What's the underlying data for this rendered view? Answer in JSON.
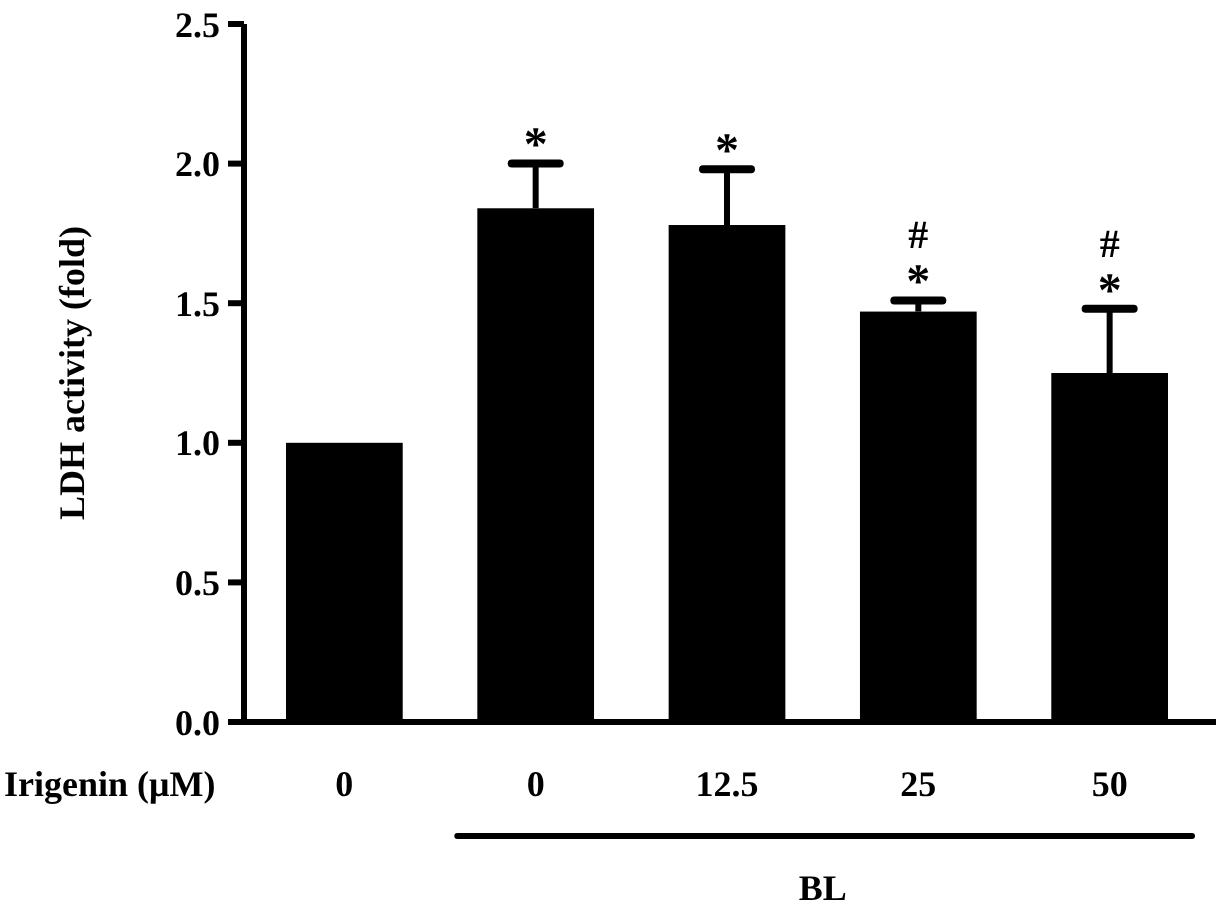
{
  "chart_data": {
    "type": "bar",
    "xlabel": "Irigenin (μM)",
    "ylabel": "LDH activity (fold)",
    "categories": [
      "0",
      "0",
      "12.5",
      "25",
      "50"
    ],
    "values": [
      1.0,
      1.84,
      1.78,
      1.47,
      1.25
    ],
    "errors": [
      null,
      [
        1.84,
        2.0
      ],
      [
        1.78,
        1.98
      ],
      [
        1.47,
        1.51
      ],
      [
        1.25,
        1.48
      ]
    ],
    "color": "#000000",
    "ylim": [
      0,
      2.5
    ],
    "yticks": [
      {
        "value": 0,
        "label": "0.0"
      },
      {
        "value": 0.5,
        "label": "0.5"
      },
      {
        "value": 1,
        "label": "1.0"
      },
      {
        "value": 1.5,
        "label": "1.5"
      },
      {
        "value": 2,
        "label": "2.0"
      },
      {
        "value": 2.5,
        "label": "2.5"
      }
    ],
    "grid": false,
    "annotations": [
      "*",
      {
        "text": "*",
        "x": "12.5",
        "y": 1.98
      },
      {
        "text": "*",
        "x": "25",
        "y": 1.51
      },
      {
        "text": "#",
        "x": "25",
        "y": 1.51
      },
      {
        "text": "*",
        "x": "50",
        "y": 1.48
      },
      {
        "text": "#",
        "x": "50",
        "y": 1.48
      },
      "BL"
    ]
  }
}
